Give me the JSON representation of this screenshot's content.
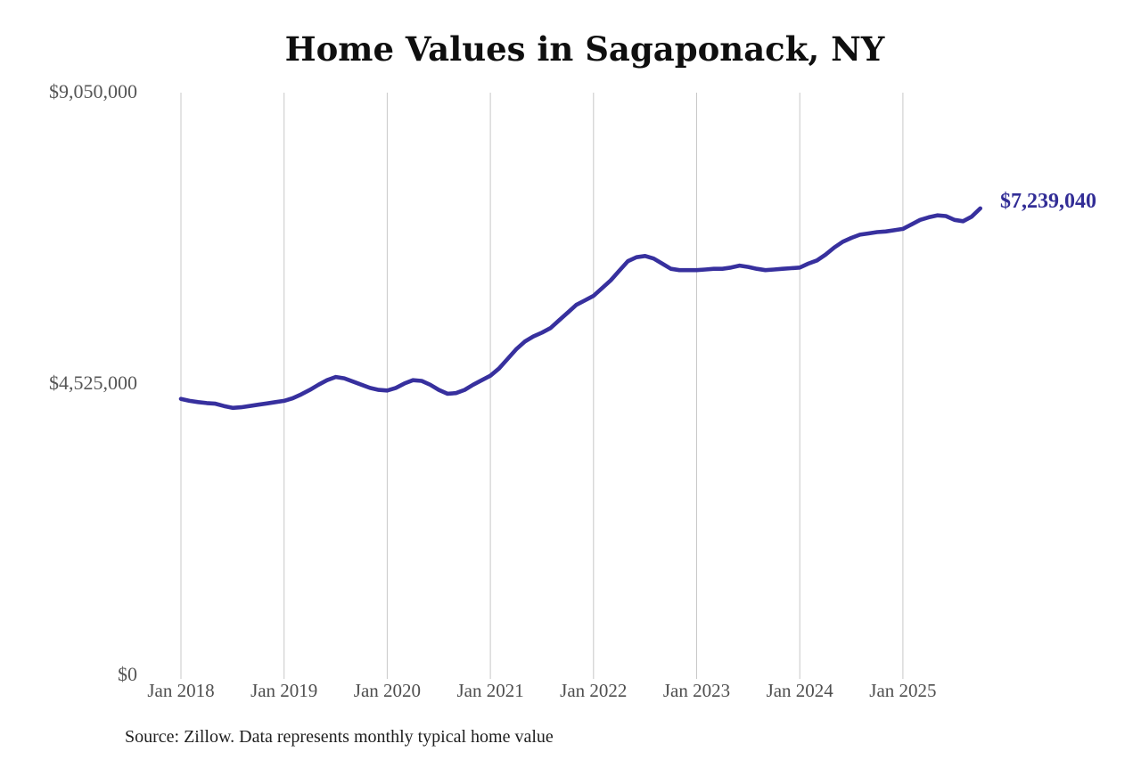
{
  "page": {
    "background": "#ffffff"
  },
  "chart_data": {
    "type": "line",
    "title": "Home Values in Sagaponack, NY",
    "xlabel": "",
    "ylabel": "",
    "x_tick_labels": [
      "Jan 2018",
      "Jan 2019",
      "Jan 2020",
      "Jan 2021",
      "Jan 2022",
      "Jan 2023",
      "Jan 2024",
      "Jan 2025"
    ],
    "y_ticks": [
      {
        "label": "$0",
        "value": 0
      },
      {
        "label": "$4,525,000",
        "value": 4525000
      },
      {
        "label": "$9,050,000",
        "value": 9050000
      }
    ],
    "ylim": [
      0,
      9050000
    ],
    "grid": "vertical-only",
    "legend": "none",
    "end_label": "$7,239,040",
    "end_value": 7239040,
    "source_note": "Source: Zillow. Data represents monthly typical home value",
    "series": [
      {
        "name": "Typical home value (monthly)",
        "start_month": "2018-01",
        "end_month": "2025-10",
        "values": [
          4280000,
          4250000,
          4230000,
          4215000,
          4205000,
          4170000,
          4140000,
          4150000,
          4170000,
          4190000,
          4210000,
          4230000,
          4250000,
          4290000,
          4350000,
          4420000,
          4500000,
          4570000,
          4620000,
          4600000,
          4550000,
          4500000,
          4450000,
          4420000,
          4410000,
          4450000,
          4520000,
          4570000,
          4560000,
          4500000,
          4420000,
          4360000,
          4370000,
          4420000,
          4500000,
          4570000,
          4640000,
          4750000,
          4900000,
          5050000,
          5170000,
          5250000,
          5310000,
          5380000,
          5500000,
          5620000,
          5740000,
          5810000,
          5880000,
          6000000,
          6120000,
          6270000,
          6420000,
          6480000,
          6500000,
          6460000,
          6380000,
          6300000,
          6280000,
          6280000,
          6280000,
          6290000,
          6300000,
          6300000,
          6320000,
          6350000,
          6330000,
          6300000,
          6280000,
          6290000,
          6300000,
          6310000,
          6320000,
          6380000,
          6430000,
          6520000,
          6630000,
          6720000,
          6780000,
          6830000,
          6850000,
          6870000,
          6880000,
          6900000,
          6920000,
          6990000,
          7060000,
          7100000,
          7130000,
          7120000,
          7060000,
          7040000,
          7110000,
          7239040
        ]
      }
    ]
  },
  "colors": {
    "line": "#37309e",
    "end_label": "#322d96",
    "grid": "#c8c8c8",
    "axis_text": "#565656",
    "title_text": "#0f0f0f",
    "source_text": "#1f1f1f"
  }
}
